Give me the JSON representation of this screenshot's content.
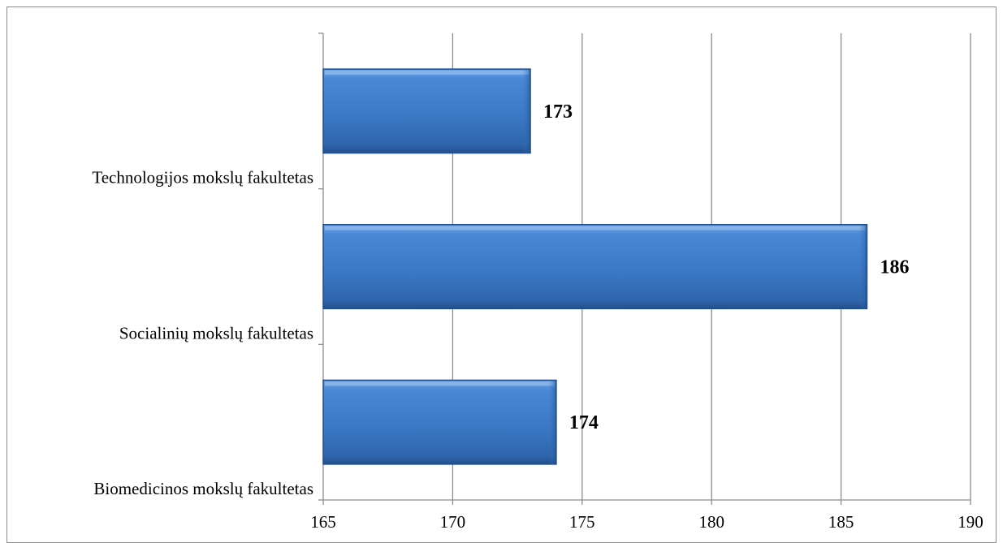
{
  "chart_data": {
    "type": "bar",
    "orientation": "horizontal",
    "categories": [
      "Biomedicinos mokslų fakultetas",
      "Socialinių mokslų fakultetas",
      "Technologijos mokslų fakultetas"
    ],
    "values": [
      174,
      186,
      173
    ],
    "data_labels": [
      "174",
      "186",
      "173"
    ],
    "xlim": [
      165,
      190
    ],
    "x_ticks": [
      "165",
      "170",
      "175",
      "180",
      "185",
      "190"
    ],
    "grid": "vertical",
    "legend": "none",
    "bar_color": "#3a78c4",
    "bar_edge_color": "#1f4f8f",
    "title": "",
    "xlabel": "",
    "ylabel": ""
  }
}
